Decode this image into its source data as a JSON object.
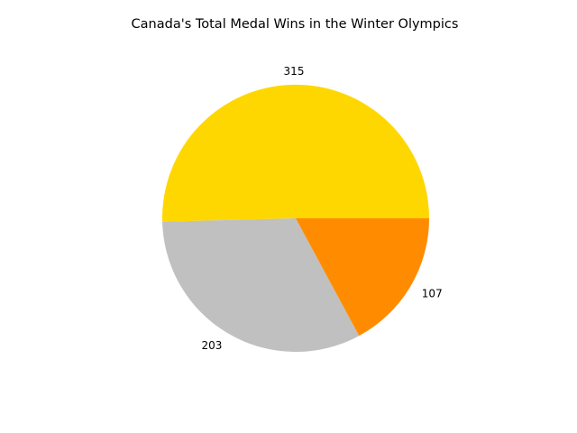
{
  "chart_data": {
    "type": "pie",
    "title": "Canada's Total Medal Wins in the Winter Olympics",
    "start_angle_deg": 0,
    "direction": "counterclockwise",
    "slices": [
      {
        "value": 315,
        "label": "315",
        "color": "#FFD700"
      },
      {
        "value": 203,
        "label": "203",
        "color": "#C0C0C0"
      },
      {
        "value": 107,
        "label": "107",
        "color": "#FF8C00"
      }
    ]
  }
}
